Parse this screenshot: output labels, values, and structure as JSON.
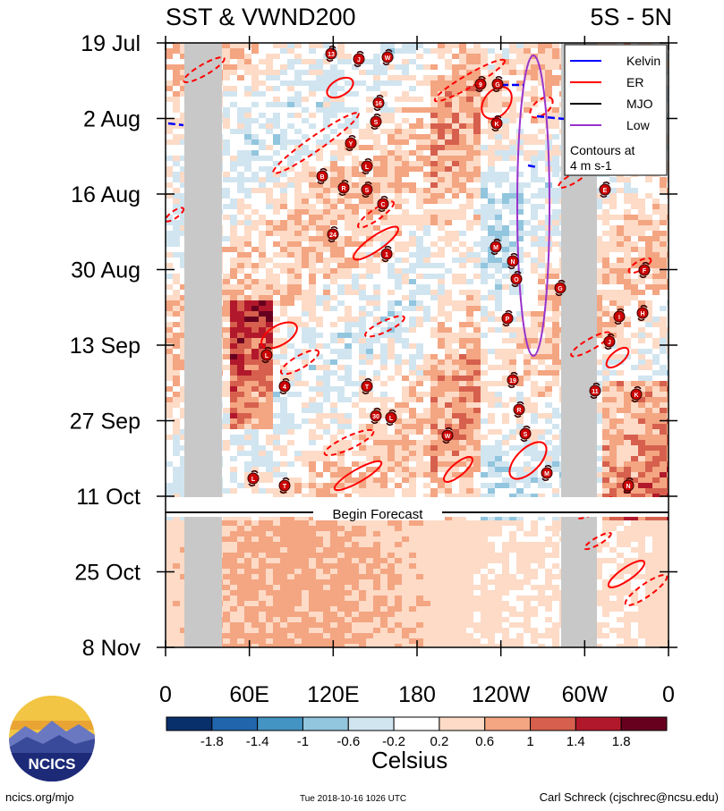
{
  "header": {
    "title_left": "SST & VWND200",
    "title_right": "5S - 5N"
  },
  "chart_data": {
    "type": "heatmap",
    "title": "SST & VWND200",
    "region": "5S - 5N",
    "y_ticks": [
      "19 Jul",
      "2 Aug",
      "16 Aug",
      "30 Aug",
      "13 Sep",
      "27 Sep",
      "11 Oct",
      "25 Oct",
      "8 Nov"
    ],
    "x_ticks": [
      "0",
      "60E",
      "120E",
      "180",
      "120W",
      "60W",
      "0"
    ],
    "forecast_label": "Begin Forecast",
    "forecast_start": "11 Oct",
    "colorbar": {
      "label": "Celsius",
      "ticks": [
        "-1.8",
        "-1.4",
        "-1",
        "-0.6",
        "-0.2",
        "0.2",
        "0.6",
        "1",
        "1.4",
        "1.8"
      ],
      "colors": [
        "#08306b",
        "#2166ac",
        "#4393c3",
        "#92c5de",
        "#d1e5f0",
        "#ffffff",
        "#fddbc7",
        "#f4a582",
        "#d6604d",
        "#b2182b",
        "#67001f"
      ]
    },
    "legend": {
      "position": "top-right",
      "entries": [
        {
          "name": "Kelvin",
          "color": "#0000ff"
        },
        {
          "name": "ER",
          "color": "#ff0000"
        },
        {
          "name": "MJO",
          "color": "#000000"
        },
        {
          "name": "Low",
          "color": "#9933cc"
        }
      ],
      "note": "Contours at\n4 m s-1"
    },
    "storm_labels": [
      "13",
      "J",
      "W",
      "9",
      "G",
      "16",
      "S",
      "Y",
      "L",
      "B",
      "R",
      "S",
      "C",
      "24",
      "1",
      "L",
      "4",
      "T",
      "30",
      "L",
      "W",
      "K",
      "M",
      "N",
      "O",
      "G",
      "P",
      "19",
      "R",
      "S",
      "M",
      "L",
      "T",
      "E",
      "F",
      "I",
      "H",
      "J",
      "11",
      "K",
      "N"
    ]
  },
  "footer": {
    "url": "ncics.org/mjo",
    "timestamp": "Tue 2018-10-16 1026 UTC",
    "author": "Carl Schreck (cjschrec@ncsu.edu)"
  },
  "logo": {
    "text": "NCICS"
  }
}
